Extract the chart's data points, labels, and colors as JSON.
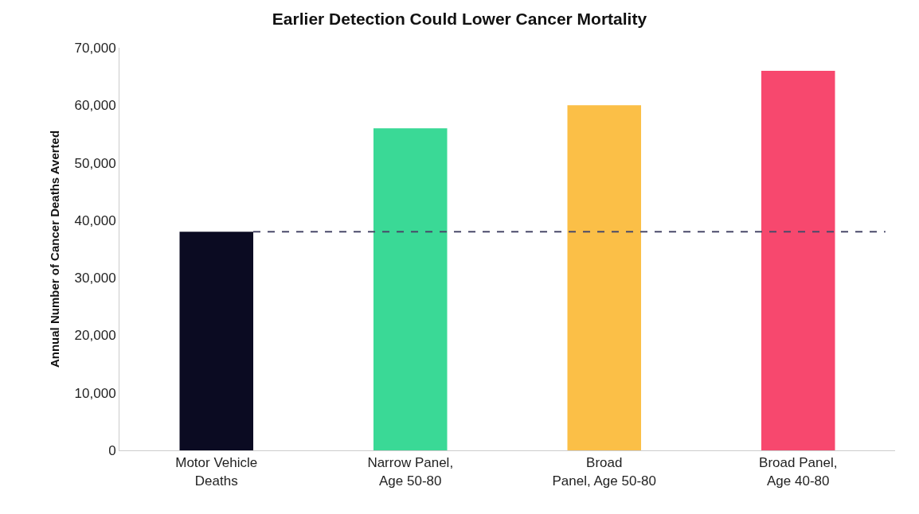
{
  "chart_data": {
    "type": "bar",
    "title": "Earlier Detection Could Lower Cancer Mortality",
    "ylabel": "Annual Number of Cancer Deaths Averted",
    "categories": [
      "Motor Vehicle\nDeaths",
      "Narrow Panel,\nAge 50-80",
      "Broad\nPanel, Age 50-80",
      "Broad Panel,\nAge 40-80"
    ],
    "values": [
      38000,
      56000,
      60000,
      66000
    ],
    "colors": [
      "#0b0b22",
      "#3ad996",
      "#fbbf47",
      "#f7486e"
    ],
    "ylim": [
      0,
      70000
    ],
    "yticks": [
      {
        "value": 0,
        "label": "0"
      },
      {
        "value": 10000,
        "label": "10,000"
      },
      {
        "value": 20000,
        "label": "20,000"
      },
      {
        "value": 30000,
        "label": "30,000"
      },
      {
        "value": 40000,
        "label": "40,000"
      },
      {
        "value": 50000,
        "label": "50,000"
      },
      {
        "value": 60000,
        "label": "60,000"
      },
      {
        "value": 70000,
        "label": "70,000"
      }
    ],
    "ref_lines": [
      {
        "axis": "y",
        "value": 38000,
        "color": "#4a4a6a",
        "line_style": "dashed"
      }
    ]
  }
}
